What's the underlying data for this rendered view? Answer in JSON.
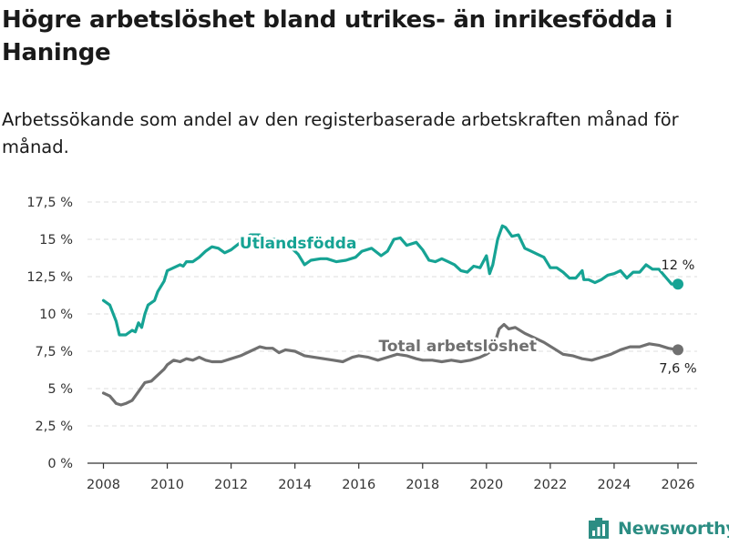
{
  "header": {
    "title": "Högre arbetslöshet bland utrikes- än inrikesfödda i Haninge",
    "subtitle": "Arbetssökande som andel av den registerbaserade arbetskraften månad för månad."
  },
  "brand": {
    "name": "Newsworthy",
    "icon": "newsworthy-logo-icon"
  },
  "colors": {
    "foreign": "#16a394",
    "total": "#707070",
    "axis": "#333333",
    "grid": "#dddddd"
  },
  "chart_data": {
    "type": "line",
    "title": "Högre arbetslöshet bland utrikes- än inrikesfödda i Haninge",
    "xlabel": "",
    "ylabel": "",
    "xlim": [
      2007.5,
      2026.6
    ],
    "ylim": [
      0,
      17.5
    ],
    "x_ticks": [
      2008,
      2010,
      2012,
      2014,
      2016,
      2018,
      2020,
      2022,
      2024,
      2026
    ],
    "x_tick_labels": [
      "2008",
      "2010",
      "2012",
      "2014",
      "2016",
      "2018",
      "2020",
      "2022",
      "2024",
      "2026"
    ],
    "y_ticks": [
      0,
      2.5,
      5,
      7.5,
      10,
      12.5,
      15,
      17.5
    ],
    "y_tick_labels": [
      "0 %",
      "2,5 %",
      "5 %",
      "7,5 %",
      "10 %",
      "12,5 %",
      "15 %",
      "17,5 %"
    ],
    "series": [
      {
        "name": "Utlandsfödda",
        "key": "foreign",
        "end_label": "12 %",
        "points": [
          [
            2008.0,
            10.9
          ],
          [
            2008.2,
            10.6
          ],
          [
            2008.4,
            9.5
          ],
          [
            2008.5,
            8.6
          ],
          [
            2008.7,
            8.6
          ],
          [
            2008.9,
            8.9
          ],
          [
            2009.0,
            8.8
          ],
          [
            2009.1,
            9.4
          ],
          [
            2009.2,
            9.1
          ],
          [
            2009.3,
            10.0
          ],
          [
            2009.4,
            10.6
          ],
          [
            2009.6,
            10.9
          ],
          [
            2009.7,
            11.5
          ],
          [
            2009.9,
            12.2
          ],
          [
            2010.0,
            12.9
          ],
          [
            2010.2,
            13.1
          ],
          [
            2010.4,
            13.3
          ],
          [
            2010.5,
            13.2
          ],
          [
            2010.6,
            13.5
          ],
          [
            2010.8,
            13.5
          ],
          [
            2011.0,
            13.8
          ],
          [
            2011.2,
            14.2
          ],
          [
            2011.4,
            14.5
          ],
          [
            2011.6,
            14.4
          ],
          [
            2011.8,
            14.1
          ],
          [
            2012.0,
            14.3
          ],
          [
            2012.3,
            14.8
          ],
          [
            2012.6,
            15.3
          ],
          [
            2012.9,
            15.3
          ],
          [
            2013.1,
            15.0
          ],
          [
            2013.4,
            15.0
          ],
          [
            2013.6,
            14.6
          ],
          [
            2013.9,
            14.4
          ],
          [
            2014.1,
            14.0
          ],
          [
            2014.3,
            13.3
          ],
          [
            2014.5,
            13.6
          ],
          [
            2014.8,
            13.7
          ],
          [
            2015.0,
            13.7
          ],
          [
            2015.3,
            13.5
          ],
          [
            2015.6,
            13.6
          ],
          [
            2015.9,
            13.8
          ],
          [
            2016.1,
            14.2
          ],
          [
            2016.4,
            14.4
          ],
          [
            2016.7,
            13.9
          ],
          [
            2016.9,
            14.2
          ],
          [
            2017.1,
            15.0
          ],
          [
            2017.3,
            15.1
          ],
          [
            2017.5,
            14.6
          ],
          [
            2017.8,
            14.8
          ],
          [
            2018.0,
            14.3
          ],
          [
            2018.2,
            13.6
          ],
          [
            2018.4,
            13.5
          ],
          [
            2018.6,
            13.7
          ],
          [
            2018.8,
            13.5
          ],
          [
            2019.0,
            13.3
          ],
          [
            2019.2,
            12.9
          ],
          [
            2019.4,
            12.8
          ],
          [
            2019.6,
            13.2
          ],
          [
            2019.8,
            13.1
          ],
          [
            2020.0,
            13.9
          ],
          [
            2020.1,
            12.7
          ],
          [
            2020.2,
            13.3
          ],
          [
            2020.35,
            15.0
          ],
          [
            2020.5,
            15.9
          ],
          [
            2020.6,
            15.8
          ],
          [
            2020.8,
            15.2
          ],
          [
            2021.0,
            15.3
          ],
          [
            2021.2,
            14.4
          ],
          [
            2021.4,
            14.2
          ],
          [
            2021.6,
            14.0
          ],
          [
            2021.8,
            13.8
          ],
          [
            2022.0,
            13.1
          ],
          [
            2022.2,
            13.1
          ],
          [
            2022.4,
            12.8
          ],
          [
            2022.6,
            12.4
          ],
          [
            2022.8,
            12.4
          ],
          [
            2023.0,
            12.9
          ],
          [
            2023.05,
            12.3
          ],
          [
            2023.2,
            12.3
          ],
          [
            2023.4,
            12.1
          ],
          [
            2023.6,
            12.3
          ],
          [
            2023.8,
            12.6
          ],
          [
            2024.0,
            12.7
          ],
          [
            2024.2,
            12.9
          ],
          [
            2024.4,
            12.4
          ],
          [
            2024.6,
            12.8
          ],
          [
            2024.8,
            12.8
          ],
          [
            2025.0,
            13.3
          ],
          [
            2025.2,
            13.0
          ],
          [
            2025.4,
            13.0
          ],
          [
            2025.6,
            12.5
          ],
          [
            2025.8,
            12.0
          ],
          [
            2026.0,
            12.0
          ]
        ]
      },
      {
        "name": "Total arbetslöshet",
        "key": "total",
        "end_label": "7,6 %",
        "points": [
          [
            2008.0,
            4.7
          ],
          [
            2008.2,
            4.5
          ],
          [
            2008.4,
            4.0
          ],
          [
            2008.55,
            3.9
          ],
          [
            2008.7,
            4.0
          ],
          [
            2008.9,
            4.2
          ],
          [
            2009.1,
            4.8
          ],
          [
            2009.3,
            5.4
          ],
          [
            2009.5,
            5.5
          ],
          [
            2009.7,
            5.9
          ],
          [
            2009.9,
            6.3
          ],
          [
            2010.0,
            6.6
          ],
          [
            2010.2,
            6.9
          ],
          [
            2010.4,
            6.8
          ],
          [
            2010.6,
            7.0
          ],
          [
            2010.8,
            6.9
          ],
          [
            2011.0,
            7.1
          ],
          [
            2011.2,
            6.9
          ],
          [
            2011.4,
            6.8
          ],
          [
            2011.7,
            6.8
          ],
          [
            2012.0,
            7.0
          ],
          [
            2012.3,
            7.2
          ],
          [
            2012.6,
            7.5
          ],
          [
            2012.9,
            7.8
          ],
          [
            2013.1,
            7.7
          ],
          [
            2013.3,
            7.7
          ],
          [
            2013.5,
            7.4
          ],
          [
            2013.7,
            7.6
          ],
          [
            2014.0,
            7.5
          ],
          [
            2014.3,
            7.2
          ],
          [
            2014.6,
            7.1
          ],
          [
            2014.9,
            7.0
          ],
          [
            2015.2,
            6.9
          ],
          [
            2015.5,
            6.8
          ],
          [
            2015.8,
            7.1
          ],
          [
            2016.0,
            7.2
          ],
          [
            2016.3,
            7.1
          ],
          [
            2016.6,
            6.9
          ],
          [
            2016.9,
            7.1
          ],
          [
            2017.2,
            7.3
          ],
          [
            2017.5,
            7.2
          ],
          [
            2017.8,
            7.0
          ],
          [
            2018.0,
            6.9
          ],
          [
            2018.3,
            6.9
          ],
          [
            2018.6,
            6.8
          ],
          [
            2018.9,
            6.9
          ],
          [
            2019.2,
            6.8
          ],
          [
            2019.5,
            6.9
          ],
          [
            2019.8,
            7.1
          ],
          [
            2020.0,
            7.3
          ],
          [
            2020.2,
            7.6
          ],
          [
            2020.4,
            9.0
          ],
          [
            2020.55,
            9.3
          ],
          [
            2020.7,
            9.0
          ],
          [
            2020.9,
            9.1
          ],
          [
            2021.2,
            8.7
          ],
          [
            2021.5,
            8.4
          ],
          [
            2021.8,
            8.1
          ],
          [
            2022.1,
            7.7
          ],
          [
            2022.4,
            7.3
          ],
          [
            2022.7,
            7.2
          ],
          [
            2023.0,
            7.0
          ],
          [
            2023.3,
            6.9
          ],
          [
            2023.6,
            7.1
          ],
          [
            2023.9,
            7.3
          ],
          [
            2024.2,
            7.6
          ],
          [
            2024.5,
            7.8
          ],
          [
            2024.8,
            7.8
          ],
          [
            2025.1,
            8.0
          ],
          [
            2025.4,
            7.9
          ],
          [
            2025.7,
            7.7
          ],
          [
            2026.0,
            7.6
          ]
        ]
      }
    ],
    "annotations": [
      {
        "text": "Utlandsfödda",
        "series": "foreign",
        "x": 2014.1,
        "y": 14.4
      },
      {
        "text": "Total arbetslöshet",
        "series": "total",
        "x": 2019.1,
        "y": 7.5
      }
    ]
  }
}
